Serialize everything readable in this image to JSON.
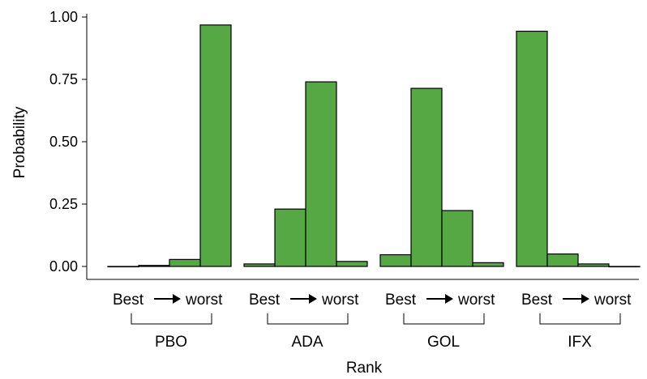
{
  "chart_data": {
    "type": "bar",
    "title": "",
    "xlabel": "Rank",
    "ylabel": "Probability",
    "ylim": [
      0,
      1
    ],
    "yticks": [
      "0.00",
      "0.25",
      "0.50",
      "0.75",
      "1.00"
    ],
    "grid": false,
    "bar_color": "#55a844",
    "rank_labels": {
      "best": "Best",
      "worst": "worst"
    },
    "groups": [
      {
        "name": "PBO",
        "values": [
          0.0,
          0.004,
          0.028,
          0.968
        ]
      },
      {
        "name": "ADA",
        "values": [
          0.01,
          0.23,
          0.74,
          0.02
        ]
      },
      {
        "name": "GOL",
        "values": [
          0.047,
          0.714,
          0.224,
          0.015
        ]
      },
      {
        "name": "IFX",
        "values": [
          0.943,
          0.05,
          0.01,
          0.0
        ]
      }
    ]
  }
}
